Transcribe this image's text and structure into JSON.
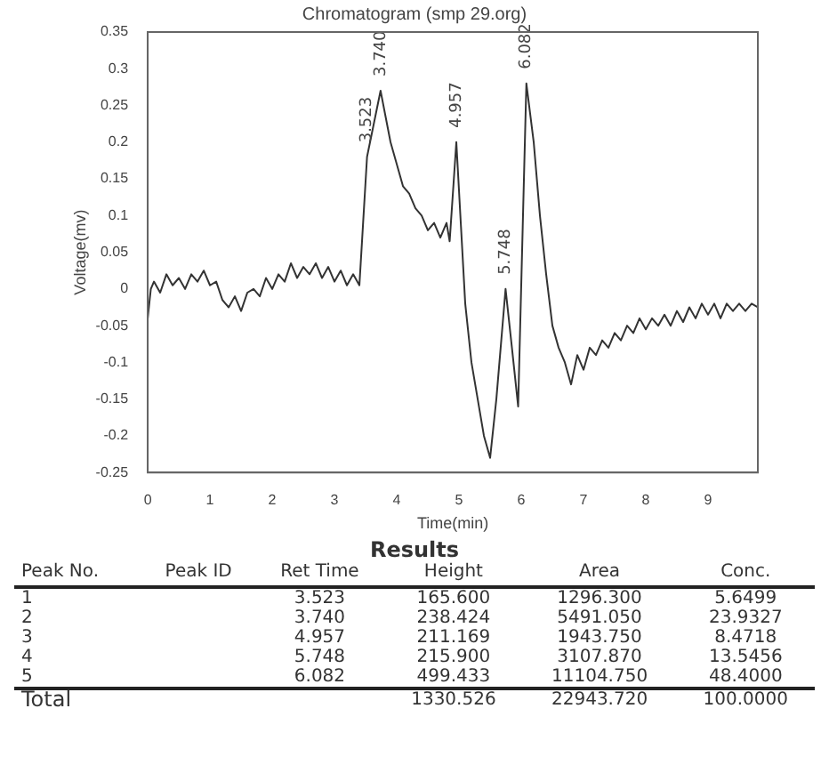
{
  "chart_data": {
    "type": "line",
    "title": "Chromatogram (smp 29.org)",
    "xlabel": "Time(min)",
    "ylabel": "Voltage(mv)",
    "series": [
      {
        "color": "#333333",
        "x": [
          0,
          0.05,
          0.1,
          0.2,
          0.3,
          0.4,
          0.5,
          0.6,
          0.7,
          0.8,
          0.9,
          1.0,
          1.1,
          1.2,
          1.3,
          1.4,
          1.5,
          1.6,
          1.7,
          1.8,
          1.9,
          2.0,
          2.1,
          2.2,
          2.3,
          2.4,
          2.5,
          2.6,
          2.7,
          2.8,
          2.9,
          3.0,
          3.1,
          3.2,
          3.3,
          3.4,
          3.523,
          3.74,
          3.9,
          4.0,
          4.1,
          4.2,
          4.3,
          4.4,
          4.5,
          4.6,
          4.7,
          4.8,
          4.85,
          4.957,
          5.1,
          5.2,
          5.3,
          5.4,
          5.5,
          5.6,
          5.748,
          5.85,
          5.95,
          6.082,
          6.2,
          6.3,
          6.4,
          6.5,
          6.6,
          6.7,
          6.8,
          6.9,
          7.0,
          7.1,
          7.2,
          7.3,
          7.4,
          7.5,
          7.6,
          7.7,
          7.8,
          7.9,
          8.0,
          8.1,
          8.2,
          8.3,
          8.4,
          8.5,
          8.6,
          8.7,
          8.8,
          8.9,
          9.0,
          9.1,
          9.2,
          9.3,
          9.4,
          9.5,
          9.6,
          9.7,
          9.8
        ],
        "values": [
          -0.04,
          0.0,
          0.01,
          -0.005,
          0.02,
          0.005,
          0.015,
          0.0,
          0.02,
          0.01,
          0.025,
          0.005,
          0.01,
          -0.015,
          -0.025,
          -0.01,
          -0.03,
          -0.005,
          0.0,
          -0.01,
          0.015,
          0.0,
          0.02,
          0.01,
          0.035,
          0.015,
          0.03,
          0.02,
          0.035,
          0.015,
          0.03,
          0.01,
          0.025,
          0.005,
          0.02,
          0.005,
          0.18,
          0.27,
          0.2,
          0.17,
          0.14,
          0.13,
          0.11,
          0.1,
          0.08,
          0.09,
          0.07,
          0.09,
          0.065,
          0.2,
          -0.02,
          -0.1,
          -0.15,
          -0.2,
          -0.23,
          -0.15,
          0.0,
          -0.08,
          -0.16,
          0.28,
          0.2,
          0.1,
          0.02,
          -0.05,
          -0.08,
          -0.1,
          -0.13,
          -0.09,
          -0.11,
          -0.08,
          -0.09,
          -0.07,
          -0.08,
          -0.06,
          -0.07,
          -0.05,
          -0.06,
          -0.04,
          -0.055,
          -0.04,
          -0.05,
          -0.035,
          -0.05,
          -0.03,
          -0.045,
          -0.025,
          -0.04,
          -0.02,
          -0.035,
          -0.02,
          -0.04,
          -0.02,
          -0.03,
          -0.02,
          -0.03,
          -0.02,
          -0.025
        ]
      }
    ],
    "xlim": [
      0,
      9.8
    ],
    "xticks": [
      0,
      1,
      2,
      3,
      4,
      5,
      6,
      7,
      8,
      9
    ],
    "ylim": [
      -0.25,
      0.35
    ],
    "yticks": [
      -0.25,
      -0.2,
      -0.15,
      -0.1,
      -0.05,
      0,
      0.05,
      0.1,
      0.15,
      0.2,
      0.25,
      0.3,
      0.35
    ],
    "grid": false,
    "legend": false,
    "marker": "none",
    "line_style": "solid",
    "annotations": [
      {
        "text": "3.523",
        "x": 3.523,
        "y": 0.18
      },
      {
        "text": "3.740",
        "x": 3.74,
        "y": 0.27
      },
      {
        "text": "4.957",
        "x": 4.957,
        "y": 0.2
      },
      {
        "text": "5.748",
        "x": 5.748,
        "y": 0.0
      },
      {
        "text": "6.082",
        "x": 6.082,
        "y": 0.28
      },
      "Results",
      "Peak No.\tPeak ID\tRet Time\tHeight\tArea\tConc.",
      "1\t\t3.523\t165.600\t1296.300\t5.6499",
      "2\t\t3.740\t238.424\t5491.050\t23.9327",
      "3\t\t4.957\t211.169\t1943.750\t8.4718",
      "4\t\t5.748\t215.900\t3107.870\t13.5456",
      "5\t\t6.082\t499.433\t11104.750\t48.4000",
      "Total\t\t\t1330.526\t22943.720\t100.0000"
    ]
  }
}
